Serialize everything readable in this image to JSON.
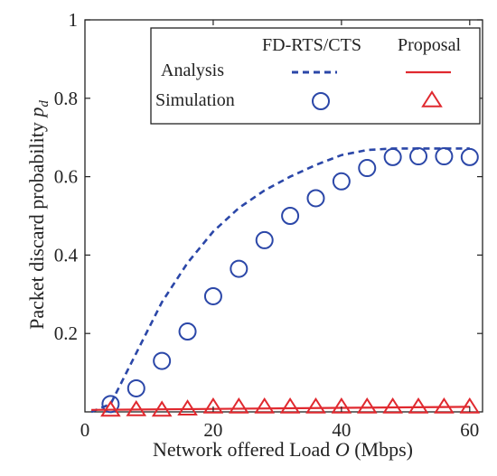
{
  "chart_data": {
    "type": "line",
    "xlabel_prefix": "Network offered Load ",
    "xlabel_var": "O",
    "xlabel_suffix": " (Mbps)",
    "ylabel_prefix": "Packet discard probability ",
    "ylabel_var": "p",
    "ylabel_sub": "d",
    "xlim": [
      0,
      62
    ],
    "ylim": [
      0,
      1
    ],
    "x_ticks": [
      0,
      20,
      40,
      60
    ],
    "y_ticks": [
      0.2,
      0.4,
      0.6,
      0.8,
      1
    ],
    "y_tick_labels": [
      "0.2",
      "0.4",
      "0.6",
      "0.8",
      "1"
    ],
    "grid": false,
    "legend": {
      "placement": "top-right",
      "columns": [
        "FD-RTS/CTS",
        "Proposal"
      ],
      "rows": [
        "Analysis",
        "Simulation"
      ]
    },
    "series": [
      {
        "name": "FD-RTS/CTS Analysis",
        "style": "dashed",
        "color": "#2b47a8",
        "x": [
          1,
          4,
          8,
          12,
          16,
          20,
          24,
          28,
          32,
          36,
          40,
          44,
          48,
          52,
          56,
          60
        ],
        "y": [
          0.0,
          0.02,
          0.15,
          0.28,
          0.38,
          0.46,
          0.52,
          0.565,
          0.6,
          0.63,
          0.655,
          0.668,
          0.672,
          0.672,
          0.672,
          0.672
        ]
      },
      {
        "name": "FD-RTS/CTS Simulation",
        "style": "circle",
        "color": "#2b47a8",
        "x": [
          4,
          8,
          12,
          16,
          20,
          24,
          28,
          32,
          36,
          40,
          44,
          48,
          52,
          56,
          60
        ],
        "y": [
          0.02,
          0.06,
          0.13,
          0.205,
          0.295,
          0.365,
          0.438,
          0.5,
          0.545,
          0.588,
          0.622,
          0.65,
          0.652,
          0.652,
          0.65
        ]
      },
      {
        "name": "Proposal Analysis",
        "style": "solid",
        "color": "#e0292f",
        "x": [
          1,
          60
        ],
        "y": [
          0.005,
          0.013
        ]
      },
      {
        "name": "Proposal Simulation",
        "style": "triangle",
        "color": "#e0292f",
        "x": [
          4,
          8,
          12,
          16,
          20,
          24,
          28,
          32,
          36,
          40,
          44,
          48,
          52,
          56,
          60
        ],
        "y": [
          0.005,
          0.006,
          0.005,
          0.008,
          0.013,
          0.013,
          0.013,
          0.013,
          0.013,
          0.013,
          0.013,
          0.013,
          0.013,
          0.013,
          0.013
        ]
      }
    ]
  },
  "colors": {
    "fd": "#2b47a8",
    "proposal": "#e0292f"
  }
}
